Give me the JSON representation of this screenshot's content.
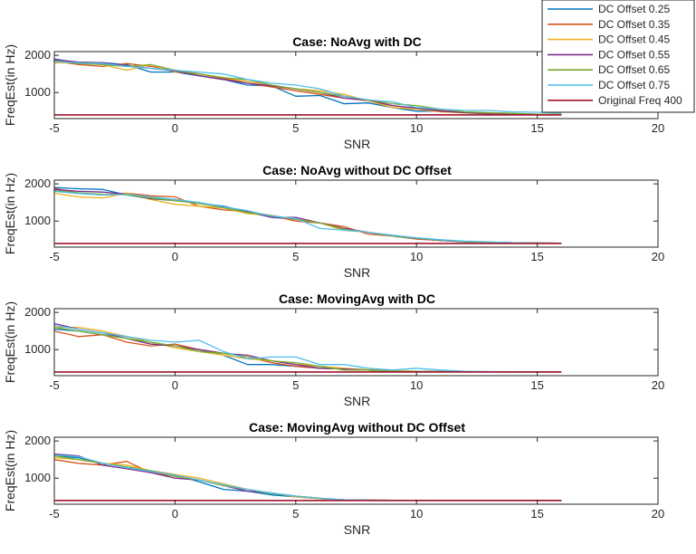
{
  "colors": {
    "series": [
      "#0072BD",
      "#D95319",
      "#EDB120",
      "#7E2F8E",
      "#77AC30",
      "#4DBEEE",
      "#A2142F"
    ],
    "axis": "#262626"
  },
  "legend": {
    "placement": "top-right",
    "entries": [
      "DC Offset 0.25",
      "DC Offset 0.35",
      "DC Offset 0.45",
      "DC Offset 0.55",
      "DC Offset 0.65",
      "DC Offset 0.75",
      "Original Freq 400"
    ]
  },
  "chart_data": [
    {
      "type": "line",
      "title": "Case: NoAvg with DC",
      "xlabel": "SNR",
      "ylabel": "FreqEst(in Hz)",
      "xlim": [
        -5,
        20
      ],
      "ylim": [
        300,
        2100
      ],
      "xticks": [
        "-5",
        "0",
        "5",
        "10",
        "15",
        "20"
      ],
      "yticks": [
        "1000",
        "2000"
      ],
      "x": [
        -5,
        -4,
        -3,
        -2,
        -1,
        0,
        1,
        2,
        3,
        4,
        5,
        6,
        7,
        8,
        9,
        10,
        11,
        12,
        13,
        14,
        15,
        16
      ],
      "series": [
        {
          "name": "DC Offset 0.25",
          "values": [
            1900,
            1800,
            1800,
            1750,
            1550,
            1550,
            1450,
            1350,
            1200,
            1180,
            900,
            920,
            700,
            720,
            600,
            500,
            500,
            450,
            430,
            420,
            420,
            410
          ]
        },
        {
          "name": "DC Offset 0.35",
          "values": [
            1850,
            1750,
            1700,
            1780,
            1700,
            1600,
            1500,
            1380,
            1250,
            1150,
            1050,
            950,
            850,
            780,
            650,
            580,
            520,
            450,
            440,
            420,
            410,
            405
          ]
        },
        {
          "name": "DC Offset 0.45",
          "values": [
            1800,
            1800,
            1750,
            1600,
            1750,
            1550,
            1500,
            1400,
            1300,
            1200,
            1100,
            1050,
            950,
            780,
            600,
            550,
            480,
            450,
            450,
            430,
            420,
            410
          ]
        },
        {
          "name": "DC Offset 0.55",
          "values": [
            1880,
            1820,
            1800,
            1720,
            1650,
            1580,
            1450,
            1350,
            1250,
            1180,
            1100,
            1000,
            850,
            800,
            650,
            580,
            500,
            460,
            450,
            430,
            420,
            405
          ]
        },
        {
          "name": "DC Offset 0.65",
          "values": [
            1850,
            1780,
            1750,
            1700,
            1750,
            1600,
            1500,
            1400,
            1350,
            1200,
            1100,
            1000,
            900,
            800,
            700,
            650,
            550,
            480,
            460,
            440,
            420,
            410
          ]
        },
        {
          "name": "DC Offset 0.75",
          "values": [
            1830,
            1800,
            1780,
            1700,
            1650,
            1600,
            1550,
            1500,
            1350,
            1250,
            1200,
            1100,
            900,
            800,
            750,
            600,
            550,
            520,
            520,
            480,
            470,
            450
          ]
        },
        {
          "name": "Original Freq 400",
          "values": [
            400,
            400,
            400,
            400,
            400,
            400,
            400,
            400,
            400,
            400,
            400,
            400,
            400,
            400,
            400,
            400,
            400,
            400,
            400,
            400,
            400,
            400
          ]
        }
      ]
    },
    {
      "type": "line",
      "title": "Case: NoAvg without DC Offset",
      "xlabel": "SNR",
      "ylabel": "FreqEst(in Hz)",
      "xlim": [
        -5,
        20
      ],
      "ylim": [
        300,
        2100
      ],
      "xticks": [
        "-5",
        "0",
        "5",
        "10",
        "15",
        "20"
      ],
      "yticks": [
        "1000",
        "2000"
      ],
      "x": [
        -5,
        -4,
        -3,
        -2,
        -1,
        0,
        1,
        2,
        3,
        4,
        5,
        6,
        7,
        8,
        9,
        10,
        11,
        12,
        13,
        14,
        15,
        16
      ],
      "series": [
        {
          "name": "DC Offset 0.25",
          "values": [
            1900,
            1870,
            1850,
            1700,
            1600,
            1550,
            1480,
            1400,
            1250,
            1100,
            1050,
            950,
            780,
            700,
            600,
            520,
            480,
            440,
            430,
            420,
            410,
            405
          ]
        },
        {
          "name": "DC Offset 0.35",
          "values": [
            1880,
            1750,
            1700,
            1750,
            1680,
            1650,
            1400,
            1300,
            1250,
            1150,
            1000,
            950,
            850,
            650,
            600,
            520,
            480,
            450,
            430,
            420,
            410,
            405
          ]
        },
        {
          "name": "DC Offset 0.45",
          "values": [
            1750,
            1650,
            1620,
            1750,
            1580,
            1450,
            1400,
            1350,
            1200,
            1150,
            1050,
            950,
            750,
            700,
            600,
            550,
            480,
            450,
            430,
            420,
            410,
            405
          ]
        },
        {
          "name": "DC Offset 0.55",
          "values": [
            1850,
            1800,
            1780,
            1720,
            1600,
            1580,
            1480,
            1380,
            1250,
            1100,
            1100,
            950,
            800,
            700,
            600,
            540,
            480,
            450,
            430,
            420,
            410,
            405
          ]
        },
        {
          "name": "DC Offset 0.65",
          "values": [
            1820,
            1760,
            1720,
            1700,
            1620,
            1550,
            1470,
            1360,
            1230,
            1150,
            1050,
            950,
            780,
            700,
            600,
            540,
            490,
            450,
            430,
            420,
            410,
            405
          ]
        },
        {
          "name": "DC Offset 0.75",
          "values": [
            1800,
            1740,
            1700,
            1720,
            1650,
            1580,
            1500,
            1380,
            1280,
            1130,
            1070,
            800,
            760,
            700,
            620,
            550,
            500,
            460,
            440,
            420,
            410,
            405
          ]
        },
        {
          "name": "Original Freq 400",
          "values": [
            400,
            400,
            400,
            400,
            400,
            400,
            400,
            400,
            400,
            400,
            400,
            400,
            400,
            400,
            400,
            400,
            400,
            400,
            400,
            400,
            400,
            400
          ]
        }
      ]
    },
    {
      "type": "line",
      "title": "Case: MovingAvg with DC",
      "xlabel": "SNR",
      "ylabel": "FreqEst(in Hz)",
      "xlim": [
        -5,
        20
      ],
      "ylim": [
        300,
        2100
      ],
      "xticks": [
        "-5",
        "0",
        "5",
        "10",
        "15",
        "20"
      ],
      "yticks": [
        "1000",
        "2000"
      ],
      "x": [
        -5,
        -4,
        -3,
        -2,
        -1,
        0,
        1,
        2,
        3,
        4,
        5,
        6,
        7,
        8,
        9,
        10,
        11,
        12,
        13,
        14,
        15,
        16
      ],
      "series": [
        {
          "name": "DC Offset 0.25",
          "values": [
            1550,
            1500,
            1400,
            1300,
            1150,
            1100,
            1000,
            850,
            600,
            600,
            550,
            500,
            480,
            450,
            420,
            420,
            410,
            405,
            400,
            400,
            400,
            400
          ]
        },
        {
          "name": "DC Offset 0.35",
          "values": [
            1500,
            1350,
            1400,
            1200,
            1100,
            1150,
            1000,
            900,
            800,
            650,
            550,
            500,
            480,
            450,
            430,
            420,
            410,
            405,
            400,
            400,
            400,
            400
          ]
        },
        {
          "name": "DC Offset 0.45",
          "values": [
            1600,
            1600,
            1500,
            1350,
            1200,
            1050,
            950,
            850,
            750,
            700,
            600,
            550,
            500,
            460,
            430,
            420,
            410,
            405,
            400,
            400,
            400,
            400
          ]
        },
        {
          "name": "DC Offset 0.55",
          "values": [
            1700,
            1550,
            1450,
            1300,
            1150,
            1100,
            1000,
            900,
            850,
            700,
            600,
            500,
            480,
            450,
            420,
            420,
            410,
            405,
            400,
            400,
            400,
            400
          ]
        },
        {
          "name": "DC Offset 0.65",
          "values": [
            1600,
            1500,
            1400,
            1300,
            1200,
            1100,
            950,
            900,
            800,
            700,
            650,
            550,
            450,
            450,
            420,
            420,
            410,
            405,
            400,
            400,
            400,
            400
          ]
        },
        {
          "name": "DC Offset 0.75",
          "values": [
            1650,
            1550,
            1450,
            1350,
            1250,
            1200,
            1250,
            950,
            750,
            800,
            800,
            600,
            600,
            500,
            450,
            500,
            450,
            420,
            410,
            405,
            400,
            400
          ]
        },
        {
          "name": "Original Freq 400",
          "values": [
            400,
            400,
            400,
            400,
            400,
            400,
            400,
            400,
            400,
            400,
            400,
            400,
            400,
            400,
            400,
            400,
            400,
            400,
            400,
            400,
            400,
            400
          ]
        }
      ]
    },
    {
      "type": "line",
      "title": "Case: MovingAvg without DC Offset",
      "xlabel": "SNR",
      "ylabel": "FreqEst(in Hz)",
      "xlim": [
        -5,
        20
      ],
      "ylim": [
        300,
        2100
      ],
      "xticks": [
        "-5",
        "0",
        "5",
        "10",
        "15",
        "20"
      ],
      "yticks": [
        "1000",
        "2000"
      ],
      "x": [
        -5,
        -4,
        -3,
        -2,
        -1,
        0,
        1,
        2,
        3,
        4,
        5,
        6,
        7,
        8,
        9,
        10,
        11,
        12,
        13,
        14,
        15,
        16
      ],
      "series": [
        {
          "name": "DC Offset 0.25",
          "values": [
            1600,
            1550,
            1400,
            1300,
            1200,
            1100,
            900,
            700,
            650,
            550,
            500,
            450,
            420,
            410,
            405,
            400,
            400,
            400,
            400,
            400,
            400,
            400
          ]
        },
        {
          "name": "DC Offset 0.35",
          "values": [
            1500,
            1400,
            1350,
            1450,
            1150,
            1050,
            950,
            800,
            700,
            600,
            500,
            450,
            420,
            410,
            405,
            400,
            400,
            400,
            400,
            400,
            400,
            400
          ]
        },
        {
          "name": "DC Offset 0.45",
          "values": [
            1550,
            1500,
            1400,
            1350,
            1200,
            1100,
            1000,
            850,
            700,
            600,
            500,
            450,
            420,
            410,
            405,
            400,
            400,
            400,
            400,
            400,
            400,
            400
          ]
        },
        {
          "name": "DC Offset 0.55",
          "values": [
            1650,
            1600,
            1350,
            1250,
            1150,
            1000,
            950,
            800,
            650,
            600,
            520,
            460,
            420,
            410,
            405,
            400,
            400,
            400,
            400,
            400,
            400,
            400
          ]
        },
        {
          "name": "DC Offset 0.65",
          "values": [
            1600,
            1500,
            1400,
            1300,
            1200,
            1050,
            950,
            800,
            700,
            580,
            520,
            460,
            420,
            410,
            405,
            400,
            400,
            400,
            400,
            400,
            400,
            400
          ]
        },
        {
          "name": "DC Offset 0.75",
          "values": [
            1620,
            1580,
            1400,
            1280,
            1180,
            1080,
            950,
            820,
            700,
            600,
            520,
            460,
            420,
            410,
            405,
            400,
            400,
            400,
            400,
            400,
            400,
            400
          ]
        },
        {
          "name": "Original Freq 400",
          "values": [
            400,
            400,
            400,
            400,
            400,
            400,
            400,
            400,
            400,
            400,
            400,
            400,
            400,
            400,
            400,
            400,
            400,
            400,
            400,
            400,
            400,
            400
          ]
        }
      ]
    }
  ]
}
